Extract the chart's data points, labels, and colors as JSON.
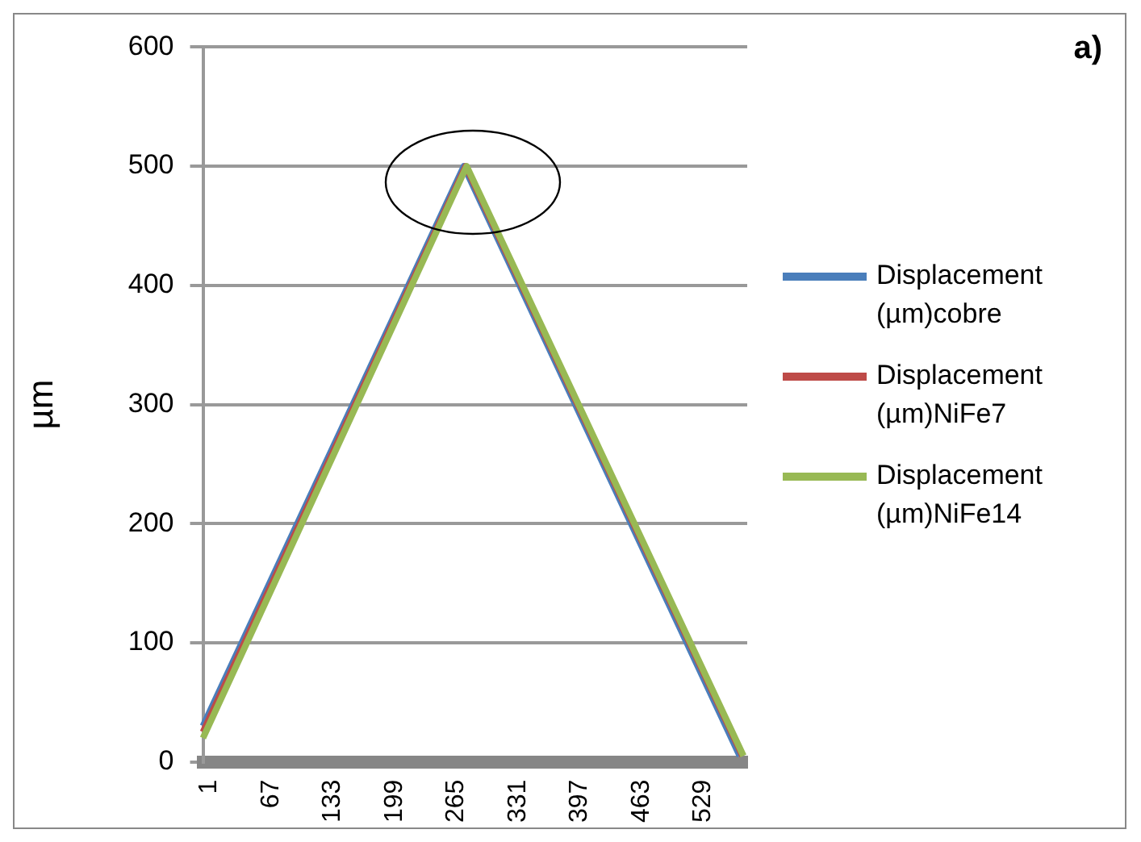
{
  "chart_data": {
    "type": "line",
    "ylabel": "µm",
    "annotations": [
      "a)"
    ],
    "xlim": [
      1,
      583
    ],
    "xticks": [
      1,
      67,
      133,
      199,
      265,
      331,
      397,
      463,
      529
    ],
    "ylim": [
      0,
      600
    ],
    "yticks": [
      0,
      100,
      200,
      300,
      400,
      500,
      600
    ],
    "grid": "y",
    "legend": "right",
    "marker": "none",
    "line_style": "solid",
    "series": [
      {
        "name": "Displacement (µm)cobre",
        "color": "#4a7ebb",
        "x": [
          1,
          280,
          575
        ],
        "values": [
          30,
          500,
          5
        ]
      },
      {
        "name": "Displacement (µm)NiFe7",
        "color": "#be4b48",
        "x": [
          1,
          282,
          578
        ],
        "values": [
          25,
          500,
          5
        ]
      },
      {
        "name": "Displacement (µm)NiFe14",
        "color": "#98b954",
        "x": [
          1,
          283,
          579
        ],
        "values": [
          20,
          500,
          5
        ]
      }
    ]
  }
}
